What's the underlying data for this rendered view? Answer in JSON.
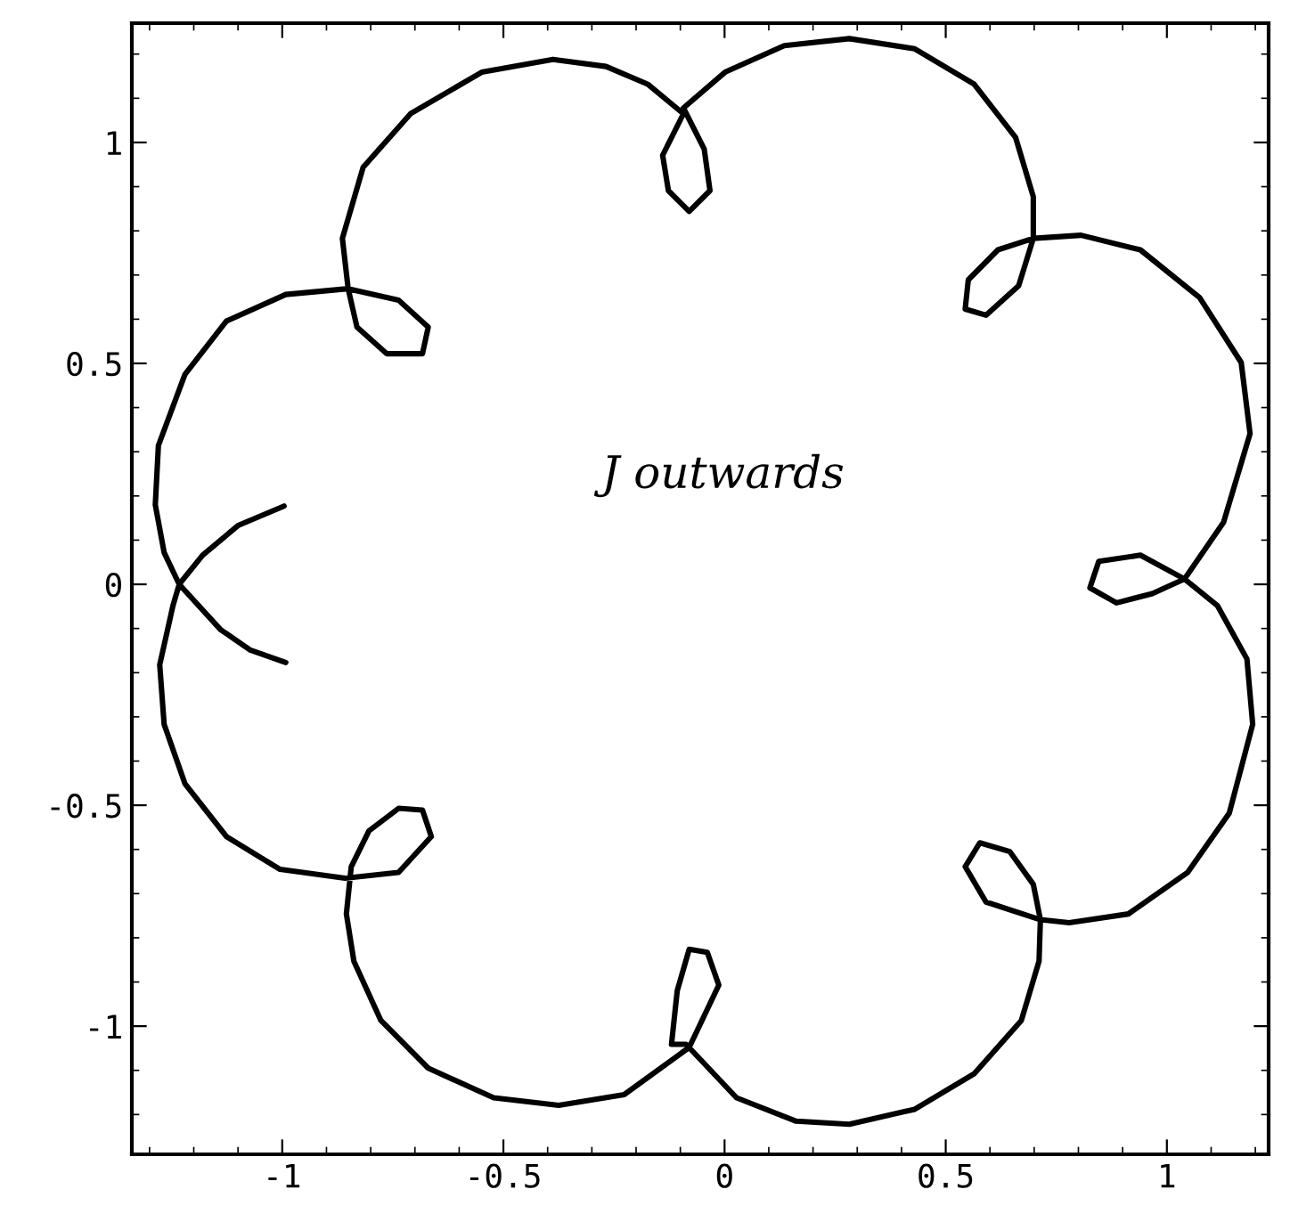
{
  "chart_data": {
    "type": "line",
    "series": [
      {
        "color": "#000000",
        "x": [
          -0.996,
          -1.1,
          -1.18,
          -1.233,
          -1.247,
          -1.277,
          -1.267,
          -1.22,
          -1.126,
          -1.005,
          -0.858,
          -0.737,
          -0.663,
          -0.683,
          -0.737,
          -0.804,
          -0.844,
          -0.855,
          -0.838,
          -0.777,
          -0.67,
          -0.522,
          -0.375,
          -0.227,
          -0.08,
          -0.013,
          -0.039,
          -0.08,
          -0.107,
          -0.12,
          -0.087,
          0.027,
          0.162,
          0.282,
          0.43,
          0.564,
          0.671,
          0.711,
          0.714,
          0.698,
          0.645,
          0.577,
          0.544,
          0.591,
          0.714,
          0.779,
          0.913,
          1.047,
          1.141,
          1.194,
          1.181,
          1.114,
          1.04,
          0.94,
          0.846,
          0.826,
          0.886,
          0.967,
          1.04,
          1.128,
          1.188,
          1.168,
          1.074,
          0.94,
          0.806,
          0.698,
          0.618,
          0.551,
          0.544,
          0.591,
          0.665,
          0.698,
          0.698,
          0.658,
          0.564,
          0.43,
          0.282,
          0.135,
          0.001,
          -0.093,
          -0.046,
          -0.033,
          -0.08,
          -0.127,
          -0.14,
          -0.093,
          -0.174,
          -0.268,
          -0.388,
          -0.549,
          -0.71,
          -0.817,
          -0.864,
          -0.851,
          -0.831,
          -0.764,
          -0.683,
          -0.67,
          -0.737,
          -0.851,
          -0.992,
          -1.126,
          -1.22,
          -1.28,
          -1.287,
          -1.267,
          -1.233,
          -1.14,
          -1.072,
          -0.992
        ],
        "values": [
          0.177,
          0.133,
          0.066,
          0.0,
          -0.048,
          -0.182,
          -0.317,
          -0.451,
          -0.571,
          -0.645,
          -0.665,
          -0.652,
          -0.571,
          -0.511,
          -0.507,
          -0.558,
          -0.639,
          -0.746,
          -0.853,
          -0.987,
          -1.095,
          -1.162,
          -1.179,
          -1.155,
          -1.048,
          -0.907,
          -0.833,
          -0.826,
          -0.92,
          -1.041,
          -1.041,
          -1.162,
          -1.215,
          -1.222,
          -1.188,
          -1.108,
          -0.987,
          -0.853,
          -0.759,
          -0.679,
          -0.605,
          -0.585,
          -0.639,
          -0.719,
          -0.759,
          -0.766,
          -0.746,
          -0.652,
          -0.518,
          -0.317,
          -0.169,
          -0.048,
          0.012,
          0.066,
          0.052,
          -0.008,
          -0.042,
          -0.021,
          0.012,
          0.14,
          0.341,
          0.502,
          0.649,
          0.757,
          0.79,
          0.783,
          0.757,
          0.689,
          0.623,
          0.609,
          0.676,
          0.783,
          0.877,
          1.011,
          1.132,
          1.212,
          1.235,
          1.219,
          1.159,
          1.078,
          0.985,
          0.891,
          0.844,
          0.891,
          0.971,
          1.065,
          1.132,
          1.172,
          1.188,
          1.159,
          1.065,
          0.944,
          0.783,
          0.669,
          0.582,
          0.522,
          0.522,
          0.582,
          0.643,
          0.669,
          0.656,
          0.596,
          0.475,
          0.314,
          0.18,
          0.072,
          0.0,
          -0.102,
          -0.149,
          -0.177
        ]
      }
    ],
    "xlim": [
      -1.34,
      1.23
    ],
    "ylim": [
      -1.29,
      1.27
    ],
    "xticks": [
      -1,
      -0.5,
      0,
      0.5,
      1
    ],
    "yticks": [
      -1,
      -0.5,
      0,
      0.5,
      1
    ],
    "annotations": [
      "J outwards"
    ],
    "line_style": "solid",
    "marker": "none"
  }
}
